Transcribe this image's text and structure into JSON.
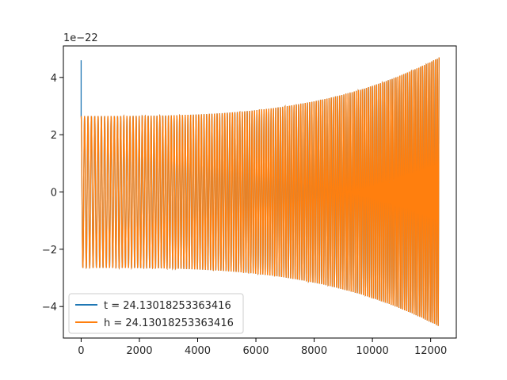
{
  "chart_data": {
    "type": "line",
    "title": "",
    "xlabel": "",
    "ylabel": "",
    "y_offset_label": "1e−22",
    "xlim": [
      -610,
      12880
    ],
    "ylim": [
      -5.1,
      5.1
    ],
    "xticks": [
      0,
      2000,
      4000,
      6000,
      8000,
      10000,
      12000
    ],
    "xtick_labels": [
      "0",
      "2000",
      "4000",
      "6000",
      "8000",
      "10000",
      "12000"
    ],
    "yticks": [
      -4,
      -2,
      0,
      2,
      4
    ],
    "ytick_labels": [
      "−4",
      "−2",
      "0",
      "2",
      "4"
    ],
    "grid": false,
    "legend_position": "lower-left",
    "waveform": {
      "x_end": 12290,
      "amplitude_start": 2.65,
      "amplitude_end": 4.7,
      "approx_cycles": 150,
      "initial_spike": 4.6
    },
    "series": [
      {
        "name": "t = 24.13018253363416",
        "color": "#1f77b4"
      },
      {
        "name": "h = 24.13018253363416",
        "color": "#ff7f0e"
      }
    ]
  }
}
